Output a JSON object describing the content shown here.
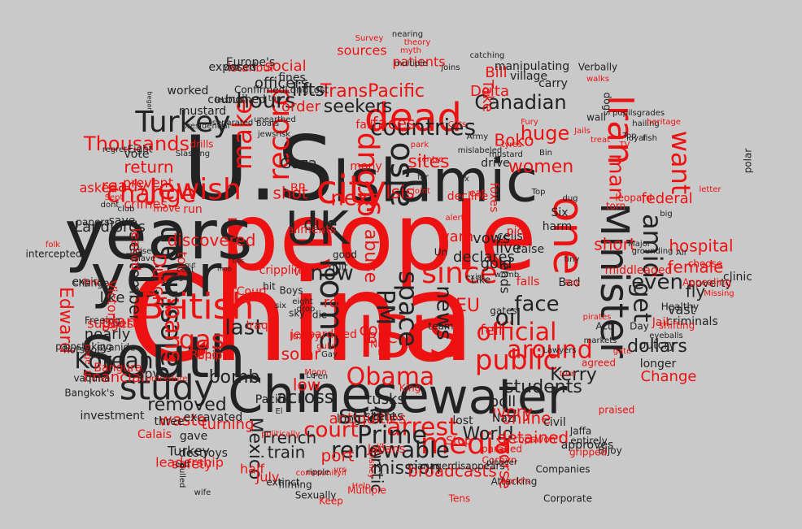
{
  "colors": {
    "background": "#c9c9c9",
    "black": "#222222",
    "red": "#ee1111"
  },
  "words": [
    {
      "t": "China",
      "c": "red"
    },
    {
      "t": "people",
      "c": "red"
    },
    {
      "t": "U.S",
      "c": "black"
    },
    {
      "t": "years",
      "c": "black"
    },
    {
      "t": "year",
      "c": "black"
    },
    {
      "t": "South",
      "c": "black"
    },
    {
      "t": "Islamic",
      "c": "black"
    },
    {
      "t": "ISIS",
      "c": "red"
    },
    {
      "t": "Chinese",
      "c": "black"
    },
    {
      "t": "water",
      "c": "black"
    },
    {
      "t": "UK",
      "c": "black"
    },
    {
      "t": "Iran",
      "c": "red"
    },
    {
      "t": "one",
      "c": "red"
    },
    {
      "t": "Minister",
      "c": "black"
    },
    {
      "t": "dead",
      "c": "red"
    },
    {
      "t": "city",
      "c": "red"
    },
    {
      "t": "British",
      "c": "red"
    },
    {
      "t": "study",
      "c": "black"
    },
    {
      "t": "home",
      "c": "black"
    },
    {
      "t": "Palestinian",
      "c": "black"
    },
    {
      "t": "Jewish",
      "c": "red"
    },
    {
      "t": "Turkey",
      "c": "black"
    },
    {
      "t": "media",
      "c": "red"
    },
    {
      "t": "public",
      "c": "red"
    },
    {
      "t": "countries",
      "c": "black"
    },
    {
      "t": "record",
      "c": "red"
    },
    {
      "t": "group",
      "c": "red"
    },
    {
      "t": "since",
      "c": "red"
    },
    {
      "t": "sea",
      "c": "black"
    },
    {
      "t": "Korean",
      "c": "black"
    },
    {
      "t": "official",
      "c": "red"
    },
    {
      "t": "arrest",
      "c": "red"
    },
    {
      "t": "court",
      "c": "red"
    },
    {
      "t": "make",
      "c": "red"
    },
    {
      "t": "also",
      "c": "black"
    },
    {
      "t": "Obama",
      "c": "red"
    },
    {
      "t": "around",
      "c": "red"
    },
    {
      "t": "Prime",
      "c": "black"
    },
    {
      "t": "renewable",
      "c": "black"
    },
    {
      "t": "gas",
      "c": "red"
    },
    {
      "t": "change",
      "c": "red"
    },
    {
      "t": "Thousands",
      "c": "red"
    },
    {
      "t": "want",
      "c": "red"
    },
    {
      "t": "amid",
      "c": "black"
    },
    {
      "t": "man",
      "c": "red"
    },
    {
      "t": "PM",
      "c": "black"
    },
    {
      "t": "space",
      "c": "black"
    },
    {
      "t": "news",
      "c": "black"
    },
    {
      "t": "bans",
      "c": "red"
    },
    {
      "t": "hours",
      "c": "black"
    },
    {
      "t": "now",
      "c": "black"
    },
    {
      "t": "last",
      "c": "black"
    },
    {
      "t": "next",
      "c": "red"
    },
    {
      "t": "face",
      "c": "black"
    },
    {
      "t": "even",
      "c": "black"
    },
    {
      "t": "get",
      "c": "black"
    },
    {
      "t": "oil",
      "c": "black"
    },
    {
      "t": "Canadian",
      "c": "black"
    },
    {
      "t": "huge",
      "c": "red"
    },
    {
      "t": "women",
      "c": "red"
    },
    {
      "t": "students",
      "c": "black"
    },
    {
      "t": "dollars",
      "c": "black"
    },
    {
      "t": "Kerry",
      "c": "black"
    },
    {
      "t": "World",
      "c": "black"
    },
    {
      "t": "across",
      "c": "black"
    },
    {
      "t": "bomb",
      "c": "black"
    },
    {
      "t": "removed",
      "c": "black"
    },
    {
      "t": "waste",
      "c": "red"
    },
    {
      "t": "mission",
      "c": "black"
    },
    {
      "t": "broadcasts",
      "c": "red"
    },
    {
      "t": "Mexico",
      "c": "black"
    },
    {
      "t": "French",
      "c": "black"
    },
    {
      "t": "train",
      "c": "black"
    },
    {
      "t": "Arctic",
      "c": "black"
    },
    {
      "t": "Edward",
      "c": "red"
    },
    {
      "t": "Dutch",
      "c": "red"
    },
    {
      "t": "September",
      "c": "black"
    },
    {
      "t": "financial",
      "c": "red"
    },
    {
      "t": "plant",
      "c": "red"
    },
    {
      "t": "discovered",
      "c": "red"
    },
    {
      "t": "return",
      "c": "red"
    },
    {
      "t": "ready",
      "c": "red"
    },
    {
      "t": "TransPacific",
      "c": "red"
    },
    {
      "t": "seekers",
      "c": "black"
    },
    {
      "t": "sites",
      "c": "red"
    },
    {
      "t": "faces",
      "c": "red"
    },
    {
      "t": "Isis",
      "c": "red"
    },
    {
      "t": "officers",
      "c": "black"
    },
    {
      "t": "social",
      "c": "red"
    },
    {
      "t": "lifts",
      "c": "black"
    },
    {
      "t": "order",
      "c": "red"
    },
    {
      "t": "shot",
      "c": "red"
    },
    {
      "t": "Gaza",
      "c": "black"
    },
    {
      "t": "due",
      "c": "black"
    },
    {
      "t": "abuse",
      "c": "red"
    },
    {
      "t": "coal",
      "c": "red"
    },
    {
      "t": "EU",
      "c": "red"
    },
    {
      "t": "row",
      "c": "red"
    },
    {
      "t": "BBC",
      "c": "red"
    },
    {
      "t": "low",
      "c": "red"
    },
    {
      "t": "solar",
      "c": "red"
    },
    {
      "t": "port",
      "c": "red"
    },
    {
      "t": "ivory",
      "c": "red"
    },
    {
      "t": "online",
      "c": "red"
    },
    {
      "t": "detained",
      "c": "red"
    },
    {
      "t": "worse",
      "c": "red"
    },
    {
      "t": "Change",
      "c": "red"
    },
    {
      "t": "fell",
      "c": "red"
    },
    {
      "t": "hospital",
      "c": "red"
    },
    {
      "t": "female",
      "c": "red"
    },
    {
      "t": "fly",
      "c": "black"
    },
    {
      "t": "vast",
      "c": "black"
    },
    {
      "t": "federal",
      "c": "red"
    },
    {
      "t": "short",
      "c": "red"
    },
    {
      "t": "Boko",
      "c": "red"
    },
    {
      "t": "Bill",
      "c": "red"
    },
    {
      "t": "Delta",
      "c": "red"
    },
    {
      "t": "Take",
      "c": "red"
    },
    {
      "t": "warn",
      "c": "red"
    },
    {
      "t": "vows",
      "c": "black"
    },
    {
      "t": "declares",
      "c": "black"
    },
    {
      "t": "gold",
      "c": "black"
    },
    {
      "t": "live",
      "c": "black"
    },
    {
      "t": "ends",
      "c": "black"
    },
    {
      "t": "poll",
      "c": "black"
    },
    {
      "t": "tusks",
      "c": "black"
    },
    {
      "t": "states",
      "c": "black"
    },
    {
      "t": "half",
      "c": "red"
    },
    {
      "t": "July",
      "c": "red"
    },
    {
      "t": "antiquities",
      "c": "red"
    },
    {
      "t": "leadership",
      "c": "red"
    },
    {
      "t": "safety",
      "c": "red"
    },
    {
      "t": "Calais",
      "c": "red"
    },
    {
      "t": "Turkey",
      "c": "black"
    },
    {
      "t": "turning",
      "c": "red"
    },
    {
      "t": "sources",
      "c": "red"
    },
    {
      "t": "patients",
      "c": "red"
    },
    {
      "t": "Istanbul",
      "c": "red"
    },
    {
      "t": "exposed",
      "c": "black"
    },
    {
      "t": "Europe's",
      "c": "black"
    },
    {
      "t": "council",
      "c": "black"
    },
    {
      "t": "mustard",
      "c": "black"
    },
    {
      "t": "worked",
      "c": "black"
    },
    {
      "t": "burned",
      "c": "black"
    },
    {
      "t": "fines",
      "c": "black"
    },
    {
      "t": "Landlords",
      "c": "black"
    },
    {
      "t": "save",
      "c": "black"
    },
    {
      "t": "like",
      "c": "black"
    },
    {
      "t": "nearly",
      "c": "black"
    },
    {
      "t": "spy",
      "c": "black"
    },
    {
      "t": "three",
      "c": "black"
    },
    {
      "t": "gave",
      "c": "black"
    },
    {
      "t": "excavated",
      "c": "black"
    },
    {
      "t": "destroys",
      "c": "black"
    },
    {
      "t": "investment",
      "c": "black"
    },
    {
      "t": "Pacific",
      "c": "black"
    },
    {
      "t": "long",
      "c": "black"
    },
    {
      "t": "tent",
      "c": "black"
    },
    {
      "t": "lost",
      "c": "black"
    },
    {
      "t": "Nazi",
      "c": "black"
    },
    {
      "t": "civil",
      "c": "black"
    },
    {
      "t": "approves",
      "c": "black"
    },
    {
      "t": "outcry",
      "c": "black"
    },
    {
      "t": "poverty",
      "c": "black"
    },
    {
      "t": "clinic",
      "c": "black"
    },
    {
      "t": "criminals",
      "c": "black"
    },
    {
      "t": "longer",
      "c": "black"
    },
    {
      "t": "polar",
      "c": "black"
    },
    {
      "t": "village",
      "c": "black"
    },
    {
      "t": "carry",
      "c": "black"
    },
    {
      "t": "manipulating",
      "c": "black"
    },
    {
      "t": "wall",
      "c": "black"
    },
    {
      "t": "dogs",
      "c": "black"
    },
    {
      "t": "drive",
      "c": "black"
    },
    {
      "t": "cells",
      "c": "black"
    },
    {
      "t": "raise",
      "c": "black"
    },
    {
      "t": "harm",
      "c": "black"
    },
    {
      "t": "Six",
      "c": "black"
    },
    {
      "t": "Un",
      "c": "black"
    },
    {
      "t": "Bad",
      "c": "black"
    },
    {
      "t": "Like",
      "c": "black"
    },
    {
      "t": "team",
      "c": "black"
    },
    {
      "t": "gates",
      "c": "black"
    },
    {
      "t": "Act",
      "c": "black"
    },
    {
      "t": "Day",
      "c": "black"
    },
    {
      "t": "Companies",
      "c": "black"
    },
    {
      "t": "Corporate",
      "c": "black"
    },
    {
      "t": "Attacking",
      "c": "black"
    },
    {
      "t": "filming",
      "c": "black"
    },
    {
      "t": "extinct",
      "c": "black"
    },
    {
      "t": "Sexually",
      "c": "black"
    },
    {
      "t": "Jaffa",
      "c": "black"
    },
    {
      "t": "entirely",
      "c": "black"
    },
    {
      "t": "Bijoy",
      "c": "black"
    },
    {
      "t": "eyeballs",
      "c": "black"
    },
    {
      "t": "Healthy",
      "c": "black"
    },
    {
      "t": "papers",
      "c": "black"
    },
    {
      "t": "intercepted",
      "c": "black"
    },
    {
      "t": "expire",
      "c": "black"
    },
    {
      "t": "Changed",
      "c": "black"
    },
    {
      "t": "Freeing",
      "c": "black"
    },
    {
      "t": "cyanide",
      "c": "black"
    },
    {
      "t": "painstaking",
      "c": "black"
    },
    {
      "t": "hotspots",
      "c": "black"
    },
    {
      "t": "vaquita",
      "c": "black"
    },
    {
      "t": "Bangkok's",
      "c": "black"
    },
    {
      "t": "pulled",
      "c": "black"
    },
    {
      "t": "vote",
      "c": "black"
    },
    {
      "t": "move",
      "c": "red"
    },
    {
      "t": "prevent",
      "c": "red"
    },
    {
      "t": "crimes",
      "c": "red"
    },
    {
      "t": "asked",
      "c": "red"
    },
    {
      "t": "suggests",
      "c": "red"
    },
    {
      "t": "Victoria",
      "c": "red"
    },
    {
      "t": "leaked",
      "c": "red"
    },
    {
      "t": "run",
      "c": "red"
    },
    {
      "t": "told",
      "c": "red"
    },
    {
      "t": "Court",
      "c": "red"
    },
    {
      "t": "Ship",
      "c": "red"
    },
    {
      "t": "Report",
      "c": "red"
    },
    {
      "t": "procedure",
      "c": "red"
    },
    {
      "t": "Bangura",
      "c": "red"
    },
    {
      "t": "page",
      "c": "red"
    },
    {
      "t": "drills",
      "c": "red"
    },
    {
      "t": "fail",
      "c": "red"
    },
    {
      "t": "many",
      "c": "red"
    },
    {
      "t": "BP",
      "c": "red"
    },
    {
      "t": "via",
      "c": "red"
    },
    {
      "t": "Iraqi",
      "c": "red"
    },
    {
      "t": "Nio",
      "c": "red"
    },
    {
      "t": "King",
      "c": "red"
    },
    {
      "t": "Stop",
      "c": "red"
    },
    {
      "t": "Japans",
      "c": "red"
    },
    {
      "t": "Multiple",
      "c": "red"
    },
    {
      "t": "World's",
      "c": "red"
    },
    {
      "t": "Corbyn",
      "c": "red"
    },
    {
      "t": "paraded",
      "c": "red"
    },
    {
      "t": "pioneer",
      "c": "black"
    },
    {
      "t": "managerdisappears",
      "c": "black"
    },
    {
      "t": "Tens",
      "c": "red"
    },
    {
      "t": "pick",
      "c": "red"
    },
    {
      "t": "foxes",
      "c": "red"
    },
    {
      "t": "decline",
      "c": "red"
    },
    {
      "t": "eat",
      "c": "red"
    },
    {
      "t": "falls",
      "c": "red"
    },
    {
      "t": "torn",
      "c": "red"
    },
    {
      "t": "leopard",
      "c": "red"
    },
    {
      "t": "middleaged",
      "c": "red"
    },
    {
      "t": "Jail",
      "c": "red"
    },
    {
      "t": "shifting",
      "c": "red"
    },
    {
      "t": "agreed",
      "c": "red"
    },
    {
      "t": "praised",
      "c": "red"
    },
    {
      "t": "gripped",
      "c": "red"
    },
    {
      "t": "copswon't",
      "c": "red"
    },
    {
      "t": "choose",
      "c": "red"
    },
    {
      "t": "Appealing",
      "c": "red"
    },
    {
      "t": "Missing",
      "c": "red"
    },
    {
      "t": "Verbally",
      "c": "black"
    },
    {
      "t": "hailing",
      "c": "black"
    },
    {
      "t": "began",
      "c": "black"
    },
    {
      "t": "Eight",
      "c": "black"
    },
    {
      "t": "regret",
      "c": "black"
    },
    {
      "t": "Slashing",
      "c": "black"
    },
    {
      "t": "presidential",
      "c": "black"
    },
    {
      "t": "separated",
      "c": "black"
    },
    {
      "t": "pupilsgrades",
      "c": "black"
    },
    {
      "t": "nearing",
      "c": "black"
    },
    {
      "t": "Survey",
      "c": "red"
    },
    {
      "t": "theory",
      "c": "red"
    },
    {
      "t": "myth",
      "c": "red"
    },
    {
      "t": "multiple",
      "c": "black"
    },
    {
      "t": "catching",
      "c": "black"
    },
    {
      "t": "joins",
      "c": "black"
    },
    {
      "t": "ConfirmedLongLost",
      "c": "black"
    },
    {
      "t": "Sept",
      "c": "red"
    },
    {
      "t": "fury",
      "c": "red"
    },
    {
      "t": "folk",
      "c": "red"
    },
    {
      "t": "put",
      "c": "black"
    },
    {
      "t": "mob",
      "c": "black"
    },
    {
      "t": "ties",
      "c": "black"
    },
    {
      "t": "dig",
      "c": "black"
    },
    {
      "t": "hit",
      "c": "black"
    },
    {
      "t": "Boys",
      "c": "black"
    },
    {
      "t": "sky",
      "c": "black"
    },
    {
      "t": "die",
      "c": "black"
    },
    {
      "t": "drop",
      "c": "black"
    },
    {
      "t": "eight",
      "c": "black"
    },
    {
      "t": "luxury",
      "c": "red"
    },
    {
      "t": "gulls",
      "c": "red"
    },
    {
      "t": "Moon",
      "c": "red"
    },
    {
      "t": "politically",
      "c": "red"
    },
    {
      "t": "Help",
      "c": "red"
    },
    {
      "t": "Keep",
      "c": "red"
    },
    {
      "t": "communityif",
      "c": "red"
    },
    {
      "t": "ripple",
      "c": "black"
    },
    {
      "t": "Disney",
      "c": "red"
    },
    {
      "t": "yr",
      "c": "red"
    },
    {
      "t": "yrs",
      "c": "red"
    },
    {
      "t": "wife",
      "c": "black"
    },
    {
      "t": "call",
      "c": "black"
    },
    {
      "t": "El",
      "c": "black"
    },
    {
      "t": "Le",
      "c": "black"
    },
    {
      "t": "Gay",
      "c": "black"
    },
    {
      "t": "Pen",
      "c": "black"
    },
    {
      "t": "quit",
      "c": "black"
    },
    {
      "t": "good",
      "c": "black"
    },
    {
      "t": "exist",
      "c": "black"
    },
    {
      "t": "womb",
      "c": "black"
    },
    {
      "t": "tiny",
      "c": "black"
    },
    {
      "t": "dug",
      "c": "black"
    },
    {
      "t": "Top",
      "c": "black"
    },
    {
      "t": "Army",
      "c": "black"
    },
    {
      "t": "Bin",
      "c": "black"
    },
    {
      "t": "mustard",
      "c": "black"
    },
    {
      "t": "alert",
      "c": "red"
    },
    {
      "t": "park",
      "c": "red"
    },
    {
      "t": "Cuts",
      "c": "red"
    },
    {
      "t": "joint",
      "c": "red"
    },
    {
      "t": "centre",
      "c": "red"
    },
    {
      "t": "Fury",
      "c": "red"
    },
    {
      "t": "tyres",
      "c": "red"
    },
    {
      "t": "Jails",
      "c": "red"
    },
    {
      "t": "pirates",
      "c": "red"
    },
    {
      "t": "Boy",
      "c": "red"
    },
    {
      "t": "gate",
      "c": "red"
    },
    {
      "t": "turn",
      "c": "red"
    },
    {
      "t": "walks",
      "c": "red"
    },
    {
      "t": "treat",
      "c": "red"
    },
    {
      "t": "TV",
      "c": "red"
    },
    {
      "t": "Top",
      "c": "black"
    },
    {
      "t": "loyal",
      "c": "black"
    },
    {
      "t": "fish",
      "c": "black"
    },
    {
      "t": "led",
      "c": "black"
    },
    {
      "t": "York",
      "c": "black"
    },
    {
      "t": "top",
      "c": "black"
    },
    {
      "t": "jewsrisk",
      "c": "black"
    },
    {
      "t": "unearthed",
      "c": "black"
    },
    {
      "t": "Boats",
      "c": "black"
    },
    {
      "t": "mislabeled",
      "c": "black"
    },
    {
      "t": "markets",
      "c": "black"
    },
    {
      "t": "Lawyers",
      "c": "black"
    },
    {
      "t": "crippling",
      "c": "red"
    },
    {
      "t": "ailments",
      "c": "red"
    },
    {
      "t": "jeopardized",
      "c": "red"
    },
    {
      "t": "Major",
      "c": "black"
    },
    {
      "t": "Air",
      "c": "black"
    },
    {
      "t": "big",
      "c": "black"
    },
    {
      "t": "grounding",
      "c": "black"
    },
    {
      "t": "heritage",
      "c": "red"
    },
    {
      "t": "letter",
      "c": "red"
    },
    {
      "t": "dont",
      "c": "black"
    },
    {
      "t": "slave",
      "c": "black"
    },
    {
      "t": "club",
      "c": "black"
    },
    {
      "t": "noise",
      "c": "black"
    },
    {
      "t": "cent",
      "c": "black"
    },
    {
      "t": "six",
      "c": "black"
    },
    {
      "t": "far",
      "c": "black"
    },
    {
      "t": "six",
      "c": "black"
    }
  ]
}
